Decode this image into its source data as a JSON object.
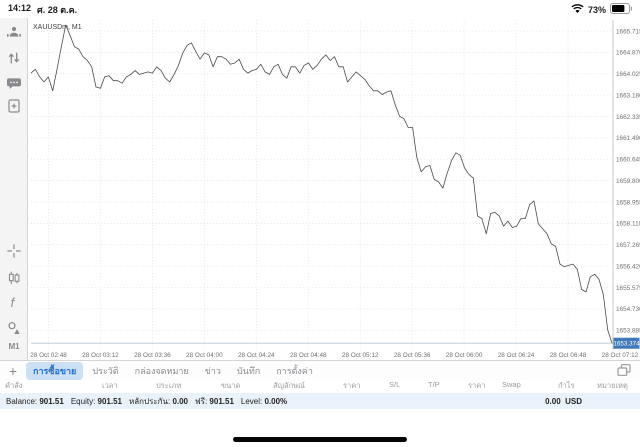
{
  "status_bar": {
    "time": "14:12",
    "date": "ศ. 28 ต.ค.",
    "battery_percent": "73%"
  },
  "sidebar": {
    "top_icons": [
      "accounts-icon",
      "updown-arrows-icon",
      "chat-icon",
      "new-order-icon"
    ],
    "tool_icons": [
      "crosshair-icon",
      "chart-type-icon",
      "indicators-icon",
      "objects-icon"
    ],
    "timeframe": "M1"
  },
  "chart": {
    "symbol_label": "XAUUSDm, M1",
    "current_price": "1653.374",
    "line_color": "#4a4a4a",
    "grid_color": "#dcdcdc",
    "price_tag_color": "#3f79b7",
    "current_price_line_color": "#b8c7d6"
  },
  "chart_data": {
    "type": "line",
    "title": "XAUUSDm, M1",
    "x_start": "28 Oct 02:40",
    "x_step_minutes": 2,
    "x_ticks": [
      "28 Oct 02:48",
      "28 Oct 03:12",
      "28 Oct 03:36",
      "28 Oct 04:00",
      "28 Oct 04:24",
      "28 Oct 04:48",
      "28 Oct 05:12",
      "28 Oct 05:36",
      "28 Oct 06:00",
      "28 Oct 06:24",
      "28 Oct 06:48",
      "28 Oct 07:12"
    ],
    "y_ticks": [
      1665.715,
      1664.87,
      1664.025,
      1663.18,
      1662.335,
      1661.49,
      1660.645,
      1659.8,
      1658.955,
      1658.11,
      1657.265,
      1656.42,
      1655.575,
      1654.73,
      1653.885
    ],
    "ylim": [
      1653.0,
      1666.2
    ],
    "grid": "dotted",
    "current_price": 1653.374,
    "prices": [
      1664.05,
      1664.2,
      1663.9,
      1663.7,
      1663.9,
      1663.35,
      1664.2,
      1665.1,
      1665.95,
      1665.55,
      1665.1,
      1665.0,
      1664.7,
      1664.55,
      1664.3,
      1663.5,
      1663.45,
      1663.9,
      1663.95,
      1663.75,
      1663.75,
      1663.65,
      1663.9,
      1664.0,
      1664.15,
      1664.0,
      1664.05,
      1664.1,
      1664.05,
      1664.3,
      1664.15,
      1663.85,
      1663.7,
      1664.0,
      1664.35,
      1664.85,
      1665.15,
      1665.25,
      1664.9,
      1664.6,
      1664.85,
      1664.77,
      1664.3,
      1664.7,
      1664.7,
      1664.6,
      1664.4,
      1664.45,
      1664.6,
      1664.2,
      1664.05,
      1664.15,
      1664.2,
      1664.4,
      1664.1,
      1664.0,
      1664.3,
      1664.4,
      1664.0,
      1663.85,
      1664.3,
      1664.3,
      1664.05,
      1664.36,
      1664.45,
      1664.2,
      1664.36,
      1664.6,
      1664.77,
      1664.55,
      1664.7,
      1664.3,
      1664.3,
      1663.7,
      1663.9,
      1664.1,
      1663.95,
      1663.8,
      1663.55,
      1663.35,
      1663.35,
      1663.2,
      1663.3,
      1663.35,
      1662.8,
      1662.35,
      1662.25,
      1661.9,
      1661.9,
      1660.7,
      1660.15,
      1660.35,
      1660.4,
      1659.85,
      1659.75,
      1659.5,
      1660.1,
      1660.6,
      1660.9,
      1660.8,
      1660.3,
      1660.05,
      1659.9,
      1658.4,
      1658.3,
      1657.7,
      1658.5,
      1658.55,
      1658.4,
      1658.0,
      1658.2,
      1657.95,
      1658.0,
      1658.3,
      1658.3,
      1658.85,
      1659.0,
      1658.1,
      1657.9,
      1657.7,
      1657.3,
      1657.2,
      1656.5,
      1656.4,
      1656.45,
      1656.5,
      1656.3,
      1655.5,
      1655.4,
      1656.0,
      1656.1,
      1655.9,
      1655.3,
      1653.9,
      1653.374
    ]
  },
  "tab_bar": {
    "add_button": "+",
    "tabs": [
      {
        "label": "การซื้อขาย",
        "selected": true
      },
      {
        "label": "ประวัติ",
        "selected": false
      },
      {
        "label": "กล่องจดหมาย",
        "selected": false
      },
      {
        "label": "ข่าว",
        "selected": false
      },
      {
        "label": "บันทึก",
        "selected": false
      },
      {
        "label": "การตั้งค่า",
        "selected": false
      }
    ]
  },
  "orders_table": {
    "headers": [
      "คำสั่ง",
      "เวลา",
      "ประเภท",
      "ขนาด",
      "สัญลักษณ์",
      "ราคา",
      "S/L",
      "T/P",
      "ราคา",
      "Swap",
      "กำไร",
      "หมายเหตุ"
    ]
  },
  "account_bar": {
    "items": [
      {
        "label": "Balance:",
        "value": "901.51"
      },
      {
        "label": "Equity:",
        "value": "901.51"
      },
      {
        "label": "หลักประกัน:",
        "value": "0.00"
      },
      {
        "label": "ฟรี:",
        "value": "901.51"
      },
      {
        "label": "Level:",
        "value": "0.00%"
      }
    ],
    "profit": "0.00",
    "currency": "USD"
  }
}
